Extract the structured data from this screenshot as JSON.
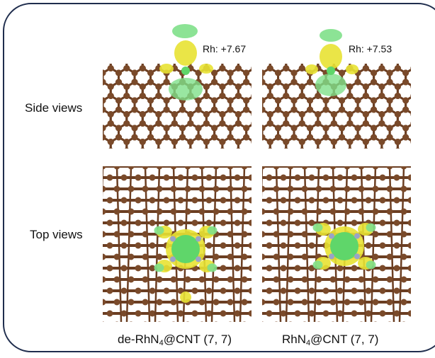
{
  "labels": {
    "side_views": "Side views",
    "top_views": "Top views"
  },
  "panels": [
    {
      "charge": "Rh: +7.67",
      "caption_prefix": "de-RhN",
      "caption_sub": "4",
      "caption_suffix": "@CNT (7, 7)"
    },
    {
      "charge": "Rh: +7.53",
      "caption_prefix": "RhN",
      "caption_sub": "4",
      "caption_suffix": "@CNT (7, 7)"
    }
  ],
  "colors": {
    "carbon": "#7a4a2a",
    "bond": "#6b3e22",
    "nitrogen": "#9aa3c8",
    "rhodium": "#5fd66a",
    "yellow_lobe": "#e8e233",
    "green_lobe": "#7fe08a",
    "frame": "#1f2d4d"
  }
}
